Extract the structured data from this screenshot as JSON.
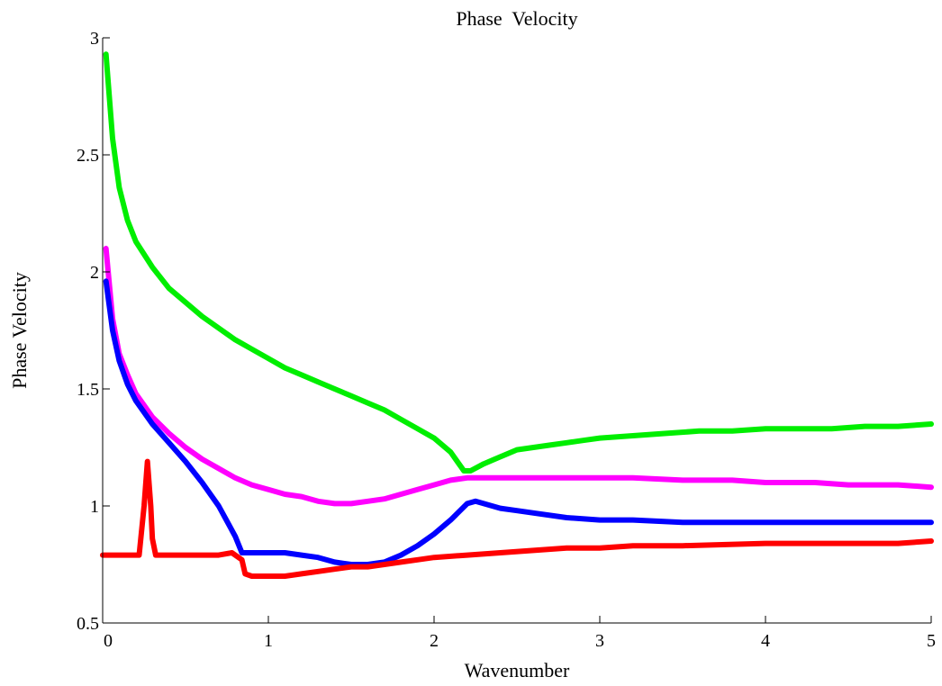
{
  "chart_data": {
    "type": "line",
    "title": "Phase  Velocity",
    "xlabel": "Wavenumber",
    "ylabel": "Phase Velocity",
    "xlim": [
      0,
      5
    ],
    "ylim": [
      0.5,
      3
    ],
    "xticks": [
      0,
      1,
      2,
      3,
      4,
      5
    ],
    "xtick_labels": [
      "0",
      "1",
      "2",
      "3",
      "4",
      "5"
    ],
    "yticks": [
      0.5,
      1,
      1.5,
      2,
      2.5,
      3
    ],
    "ytick_labels": [
      "0.5",
      "1",
      "1.5",
      "2",
      "2.5",
      "3"
    ],
    "grid": false,
    "legend": "none",
    "series": [
      {
        "color": "#00ee00",
        "x": [
          0.02,
          0.06,
          0.1,
          0.15,
          0.2,
          0.3,
          0.4,
          0.5,
          0.6,
          0.7,
          0.8,
          0.9,
          1.0,
          1.1,
          1.2,
          1.3,
          1.4,
          1.5,
          1.6,
          1.7,
          1.8,
          1.9,
          2.0,
          2.1,
          2.18,
          2.22,
          2.3,
          2.4,
          2.5,
          2.6,
          2.7,
          2.8,
          2.9,
          3.0,
          3.2,
          3.4,
          3.6,
          3.8,
          4.0,
          4.2,
          4.4,
          4.6,
          4.8,
          5.0
        ],
        "y": [
          2.93,
          2.57,
          2.36,
          2.22,
          2.13,
          2.02,
          1.93,
          1.87,
          1.81,
          1.76,
          1.71,
          1.67,
          1.63,
          1.59,
          1.56,
          1.53,
          1.5,
          1.47,
          1.44,
          1.41,
          1.37,
          1.33,
          1.29,
          1.23,
          1.15,
          1.15,
          1.18,
          1.21,
          1.24,
          1.25,
          1.26,
          1.27,
          1.28,
          1.29,
          1.3,
          1.31,
          1.32,
          1.32,
          1.33,
          1.33,
          1.33,
          1.34,
          1.34,
          1.35
        ]
      },
      {
        "color": "#ff00ff",
        "x": [
          0.02,
          0.06,
          0.1,
          0.15,
          0.2,
          0.3,
          0.4,
          0.5,
          0.6,
          0.7,
          0.8,
          0.9,
          1.0,
          1.1,
          1.2,
          1.3,
          1.4,
          1.5,
          1.6,
          1.7,
          1.8,
          1.9,
          2.0,
          2.1,
          2.2,
          2.3,
          2.5,
          2.8,
          3.0,
          3.2,
          3.5,
          3.8,
          4.0,
          4.3,
          4.5,
          4.8,
          5.0
        ],
        "y": [
          2.1,
          1.8,
          1.65,
          1.56,
          1.48,
          1.38,
          1.31,
          1.25,
          1.2,
          1.16,
          1.12,
          1.09,
          1.07,
          1.05,
          1.04,
          1.02,
          1.01,
          1.01,
          1.02,
          1.03,
          1.05,
          1.07,
          1.09,
          1.11,
          1.12,
          1.12,
          1.12,
          1.12,
          1.12,
          1.12,
          1.11,
          1.11,
          1.1,
          1.1,
          1.09,
          1.09,
          1.08
        ]
      },
      {
        "color": "#0000ff",
        "x": [
          0.02,
          0.06,
          0.1,
          0.15,
          0.2,
          0.3,
          0.4,
          0.5,
          0.6,
          0.7,
          0.8,
          0.84,
          0.9,
          1.0,
          1.1,
          1.2,
          1.3,
          1.4,
          1.5,
          1.6,
          1.7,
          1.8,
          1.9,
          2.0,
          2.1,
          2.2,
          2.25,
          2.3,
          2.4,
          2.5,
          2.6,
          2.8,
          3.0,
          3.2,
          3.5,
          4.0,
          4.3,
          4.6,
          5.0
        ],
        "y": [
          1.96,
          1.75,
          1.62,
          1.52,
          1.45,
          1.35,
          1.27,
          1.19,
          1.1,
          1.0,
          0.87,
          0.8,
          0.8,
          0.8,
          0.8,
          0.79,
          0.78,
          0.76,
          0.75,
          0.75,
          0.76,
          0.79,
          0.83,
          0.88,
          0.94,
          1.01,
          1.02,
          1.01,
          0.99,
          0.98,
          0.97,
          0.95,
          0.94,
          0.94,
          0.93,
          0.93,
          0.93,
          0.93,
          0.93
        ]
      },
      {
        "color": "#ff0000",
        "x": [
          0.0,
          0.1,
          0.22,
          0.25,
          0.27,
          0.29,
          0.3,
          0.32,
          0.35,
          0.4,
          0.5,
          0.6,
          0.7,
          0.78,
          0.84,
          0.86,
          0.9,
          1.0,
          1.1,
          1.2,
          1.3,
          1.4,
          1.5,
          1.6,
          1.7,
          1.8,
          1.9,
          2.0,
          2.2,
          2.4,
          2.6,
          2.8,
          3.0,
          3.2,
          3.5,
          4.0,
          4.5,
          4.8,
          5.0
        ],
        "y": [
          0.79,
          0.79,
          0.79,
          1.0,
          1.19,
          1.0,
          0.86,
          0.79,
          0.79,
          0.79,
          0.79,
          0.79,
          0.79,
          0.8,
          0.77,
          0.71,
          0.7,
          0.7,
          0.7,
          0.71,
          0.72,
          0.73,
          0.74,
          0.74,
          0.75,
          0.76,
          0.77,
          0.78,
          0.79,
          0.8,
          0.81,
          0.82,
          0.82,
          0.83,
          0.83,
          0.84,
          0.84,
          0.84,
          0.85
        ]
      }
    ]
  }
}
